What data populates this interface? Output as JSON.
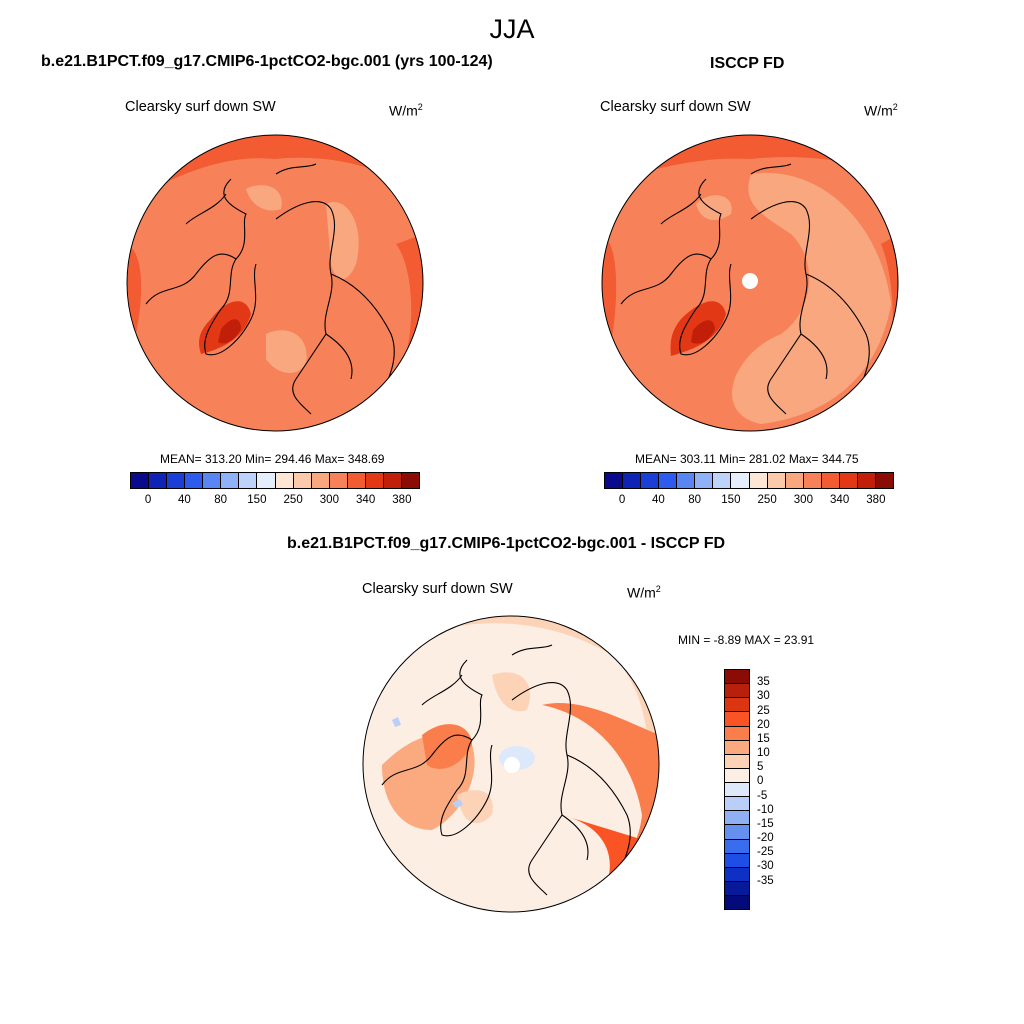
{
  "season": "JJA",
  "panels": {
    "model": {
      "title": "b.e21.B1PCT.f09_g17.CMIP6-1pctCO2-bgc.001 (yrs 100-124)",
      "variable": "Clearsky surf down SW",
      "units_base": "W/m",
      "units_exp": "2",
      "stats": "MEAN= 313.20  Min= 294.46  Max= 348.69"
    },
    "obs": {
      "title": "ISCCP FD",
      "variable": "Clearsky surf down SW",
      "units_base": "W/m",
      "units_exp": "2",
      "stats": "MEAN= 303.11  Min= 281.02  Max= 344.75"
    },
    "diff": {
      "title": "b.e21.B1PCT.f09_g17.CMIP6-1pctCO2-bgc.001 - ISCCP FD",
      "variable": "Clearsky surf down SW",
      "units_base": "W/m",
      "units_exp": "2",
      "stats": "MIN =  -8.89 MAX =  23.91"
    }
  },
  "colorbar_main": {
    "colors": [
      "#0a0a8c",
      "#0f24b5",
      "#1b3fd6",
      "#2c5bee",
      "#5a86f3",
      "#8fb1f7",
      "#bdd3fa",
      "#e4eefc",
      "#fde6d3",
      "#fbcaaa",
      "#f9a77f",
      "#f7825a",
      "#f35c32",
      "#e23816",
      "#c21f0a",
      "#8a0c05"
    ],
    "ticks": [
      "0",
      "40",
      "80",
      "150",
      "250",
      "300",
      "340",
      "380"
    ]
  },
  "colorbar_diff": {
    "colors": [
      "#8a0c05",
      "#b7200b",
      "#db3511",
      "#fa5424",
      "#fa7e4c",
      "#fba97e",
      "#fcd3b6",
      "#fdeee4",
      "#dde9fb",
      "#b8d0f7",
      "#8fb0f3",
      "#6690f0",
      "#3a6ded",
      "#1d4ee6",
      "#0f30c4",
      "#081a9a",
      "#030a7a"
    ],
    "ticks": [
      "35",
      "30",
      "25",
      "20",
      "15",
      "10",
      "5",
      "0",
      "-5",
      "-10",
      "-15",
      "-20",
      "-25",
      "-30",
      "-35"
    ]
  }
}
